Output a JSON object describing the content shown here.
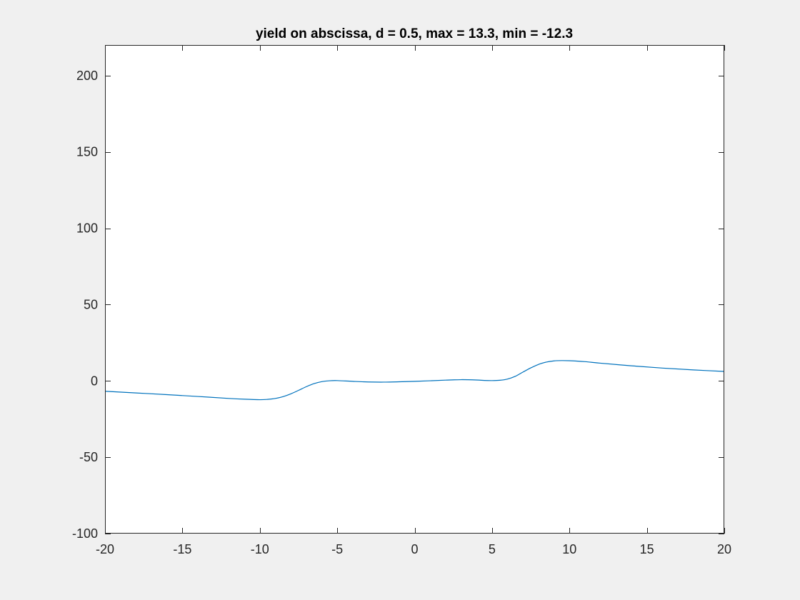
{
  "chart_data": {
    "type": "line",
    "title": "yield on abscissa, d = 0.5, max = 13.3, min = -12.3",
    "xlabel": "",
    "ylabel": "",
    "xlim": [
      -20,
      20
    ],
    "ylim": [
      -100,
      220
    ],
    "xticks": [
      -20,
      -15,
      -10,
      -5,
      0,
      5,
      10,
      15,
      20
    ],
    "xtick_labels": [
      "-20",
      "-15",
      "-10",
      "-5",
      "0",
      "5",
      "10",
      "15",
      "20"
    ],
    "yticks": [
      -100,
      -50,
      0,
      50,
      100,
      150,
      200
    ],
    "ytick_labels": [
      "-100",
      "-50",
      "0",
      "50",
      "100",
      "150",
      "200"
    ],
    "grid": false,
    "box": true,
    "series": [
      {
        "color": "#0072bd",
        "x": [
          -20,
          -18,
          -16,
          -14,
          -12,
          -11,
          -10,
          -9.5,
          -9,
          -8.5,
          -8,
          -7.5,
          -7,
          -6.5,
          -6,
          -5.5,
          -5,
          -4,
          -3,
          -2,
          -1,
          0,
          1,
          2,
          3,
          4,
          4.5,
          5,
          5.5,
          6,
          6.5,
          7,
          7.5,
          8,
          8.5,
          9,
          9.5,
          10,
          11,
          12,
          14,
          16,
          18,
          20
        ],
        "y": [
          -6.8,
          -7.9,
          -9.0,
          -10.2,
          -11.5,
          -12.0,
          -12.3,
          -12.1,
          -11.5,
          -10.3,
          -8.5,
          -6.2,
          -3.8,
          -1.8,
          -0.5,
          0.1,
          0.2,
          -0.3,
          -0.7,
          -0.8,
          -0.6,
          -0.3,
          0.1,
          0.5,
          0.8,
          0.6,
          0.3,
          0.2,
          0.4,
          1.2,
          3.0,
          5.8,
          8.5,
          10.8,
          12.3,
          13.1,
          13.3,
          13.2,
          12.6,
          11.6,
          9.9,
          8.4,
          7.2,
          6.2
        ]
      }
    ]
  }
}
